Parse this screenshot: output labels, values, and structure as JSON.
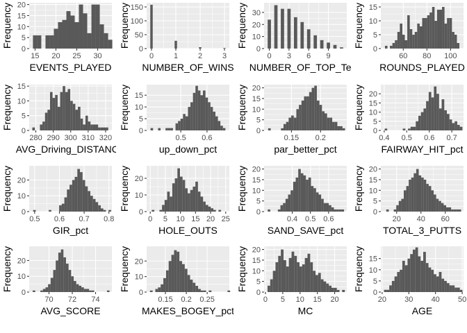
{
  "colors": {
    "panel_background": "#ebebeb",
    "grid": "#ffffff",
    "bar_fill": "#595959",
    "tick_text": "#4d4d4d"
  },
  "chart_data": [
    {
      "type": "bar",
      "xlabel": "EVENTS_PLAYED",
      "ylabel": "Frequency",
      "xlim": [
        13.6,
        33.4
      ],
      "ylim": [
        0,
        20.8
      ],
      "xticks": [
        15,
        20,
        25,
        30
      ],
      "yticks": [
        0,
        5,
        10,
        15,
        20
      ],
      "bins": {
        "start": 14.5,
        "width": 1,
        "counts": [
          6,
          6,
          0,
          6,
          6,
          9,
          12,
          13,
          17,
          15,
          12,
          20,
          16,
          7,
          20,
          20,
          11,
          7,
          4
        ]
      }
    },
    {
      "type": "bar",
      "xlabel": "NUMBER_OF_WINS",
      "ylabel": "Frequency",
      "xlim": [
        -0.2,
        3.2
      ],
      "ylim": [
        0,
        165
      ],
      "xticks": [
        0,
        1,
        2,
        3
      ],
      "yticks": [
        0,
        50,
        100,
        150
      ],
      "bins": {
        "start": -0.05,
        "width": 0.1,
        "counts": [
          158,
          0,
          0,
          0,
          0,
          0,
          0,
          0,
          0,
          0,
          28,
          0,
          0,
          0,
          0,
          0,
          0,
          0,
          0,
          0,
          5,
          0,
          0,
          0,
          0,
          0,
          0,
          0,
          0,
          0,
          2
        ]
      }
    },
    {
      "type": "bar",
      "xlabel": "NUMBER_OF_TOP_Tens",
      "ylabel": "Frequency",
      "xlim": [
        -0.8,
        11.8
      ],
      "ylim": [
        0,
        38
      ],
      "xticks": [
        0,
        3,
        6,
        9
      ],
      "yticks": [
        0,
        10,
        20,
        30
      ],
      "bins": {
        "start": -0.25,
        "width": 0.5,
        "counts": [
          24,
          0,
          36,
          0,
          33,
          0,
          33,
          0,
          26,
          0,
          22,
          0,
          16,
          0,
          11,
          0,
          7,
          0,
          5,
          0,
          3,
          0,
          1
        ]
      }
    },
    {
      "type": "bar",
      "xlabel": "ROUNDS_PLAYED",
      "ylabel": "Frequency",
      "xlim": [
        41,
        111
      ],
      "ylim": [
        0,
        16.5
      ],
      "xticks": [
        60,
        80,
        100
      ],
      "yticks": [
        0,
        5,
        10,
        15
      ],
      "bins": {
        "start": 44.5,
        "width": 2.1,
        "counts": [
          1,
          0,
          1,
          2,
          3,
          6,
          9,
          5,
          3,
          12,
          7,
          5,
          6,
          9,
          8,
          11,
          11,
          12,
          13,
          15,
          10,
          14,
          14,
          15,
          9,
          11,
          11,
          6,
          5,
          2
        ]
      }
    },
    {
      "type": "bar",
      "xlabel": "AVG_Driving_DISTANCE",
      "ylabel": "Frequency",
      "xlim": [
        276.2,
        323.6
      ],
      "ylim": [
        0,
        15.5
      ],
      "xticks": [
        280,
        290,
        300,
        310,
        320
      ],
      "yticks": [
        0,
        5,
        10,
        15
      ],
      "bins": {
        "start": 278,
        "width": 1.45,
        "counts": [
          1,
          0,
          0,
          2,
          3,
          6,
          7,
          13,
          11,
          12,
          8,
          13,
          15,
          13,
          14,
          10,
          9,
          7,
          8,
          4,
          2,
          5,
          3,
          2,
          2,
          2,
          1,
          1,
          1,
          1
        ]
      }
    },
    {
      "type": "bar",
      "xlabel": "up_down_pct",
      "ylabel": "Frequency",
      "xlim": [
        0.37,
        0.685
      ],
      "ylim": [
        0,
        19.5
      ],
      "xticks": [
        0.5,
        0.6
      ],
      "yticks": [
        0,
        5,
        10,
        15
      ],
      "bins": {
        "start": 0.385,
        "width": 0.0095,
        "counts": [
          1,
          0,
          0,
          1,
          0,
          0,
          1,
          1,
          1,
          0,
          3,
          4,
          5,
          7,
          6,
          10,
          12,
          16,
          19,
          17,
          15,
          17,
          14,
          12,
          10,
          8,
          6,
          4,
          2,
          1
        ]
      }
    },
    {
      "type": "bar",
      "xlabel": "par_better_pct",
      "ylabel": "Frequency",
      "xlim": [
        0.103,
        0.245
      ],
      "ylim": [
        0,
        21.5
      ],
      "xticks": [
        0.15,
        0.2
      ],
      "yticks": [
        0,
        5,
        10,
        15,
        20
      ],
      "bins": {
        "start": 0.11,
        "width": 0.0044,
        "counts": [
          1,
          0,
          0,
          0,
          0,
          1,
          3,
          4,
          6,
          7,
          6,
          10,
          12,
          14,
          16,
          16,
          18,
          20,
          21,
          14,
          12,
          9,
          8,
          6,
          6,
          4,
          4,
          2,
          2,
          1
        ]
      }
    },
    {
      "type": "bar",
      "xlabel": "FAIRWAY_HIT_pct",
      "ylabel": "Frequency",
      "xlim": [
        0.385,
        0.752
      ],
      "ylim": [
        0,
        25
      ],
      "xticks": [
        0.4,
        0.5,
        0.6,
        0.7
      ],
      "yticks": [
        0,
        5,
        10,
        15,
        20
      ],
      "bins": {
        "start": 0.402,
        "width": 0.0115,
        "counts": [
          1,
          0,
          0,
          0,
          0,
          0,
          0,
          1,
          0,
          1,
          2,
          2,
          5,
          8,
          10,
          12,
          16,
          21,
          18,
          24,
          20,
          12,
          17,
          11,
          9,
          6,
          4,
          5,
          3,
          2
        ]
      }
    },
    {
      "type": "bar",
      "xlabel": "GIR_pct",
      "ylabel": "Frequency",
      "xlim": [
        0.478,
        0.812
      ],
      "ylim": [
        0,
        29
      ],
      "xticks": [
        0.5,
        0.6,
        0.7,
        0.8
      ],
      "yticks": [
        0,
        10,
        20
      ],
      "bins": {
        "start": 0.494,
        "width": 0.0105,
        "counts": [
          1,
          0,
          0,
          0,
          0,
          0,
          1,
          0,
          0,
          0,
          4,
          5,
          9,
          14,
          17,
          20,
          22,
          27,
          25,
          20,
          16,
          13,
          10,
          8,
          6,
          4,
          2,
          1,
          0,
          1
        ]
      }
    },
    {
      "type": "bar",
      "xlabel": "HOLE_OUTS",
      "ylabel": "Frequency",
      "xlim": [
        -1.2,
        26.2
      ],
      "ylim": [
        0,
        27.5
      ],
      "xticks": [
        0,
        5,
        10,
        15,
        20,
        25
      ],
      "yticks": [
        0,
        10,
        20
      ],
      "bins": {
        "start": 0.5,
        "width": 0.85,
        "counts": [
          1,
          0,
          0,
          1,
          4,
          7,
          12,
          9,
          17,
          20,
          26,
          21,
          19,
          14,
          11,
          13,
          15,
          18,
          12,
          9,
          6,
          4,
          3,
          2,
          1,
          0,
          1
        ]
      }
    },
    {
      "type": "bar",
      "xlabel": "SAND_SAVE_pct",
      "ylabel": "Frequency",
      "xlim": [
        0.245,
        0.7
      ],
      "ylim": [
        0,
        21.5
      ],
      "xticks": [
        0.4,
        0.5,
        0.6
      ],
      "yticks": [
        0,
        5,
        10,
        15,
        20
      ],
      "bins": {
        "start": 0.265,
        "width": 0.014,
        "counts": [
          1,
          0,
          0,
          0,
          1,
          3,
          4,
          6,
          8,
          10,
          14,
          16,
          20,
          18,
          17,
          15,
          16,
          12,
          11,
          9,
          8,
          6,
          4,
          4,
          3,
          2,
          1,
          1,
          1,
          1
        ]
      }
    },
    {
      "type": "bar",
      "xlabel": "TOTAL_3_PUTTS",
      "ylabel": "Frequency",
      "xlim": [
        7,
        75
      ],
      "ylim": [
        0,
        21.5
      ],
      "xticks": [
        20,
        40,
        60
      ],
      "yticks": [
        0,
        5,
        10,
        15,
        20
      ],
      "bins": {
        "start": 11.5,
        "width": 2.05,
        "counts": [
          1,
          0,
          0,
          1,
          3,
          5,
          6,
          10,
          12,
          15,
          16,
          18,
          20,
          17,
          16,
          15,
          13,
          12,
          10,
          8,
          6,
          5,
          4,
          3,
          2,
          2,
          1,
          1,
          1,
          1
        ]
      }
    },
    {
      "type": "bar",
      "xlabel": "AVG_SCORE",
      "ylabel": "Frequency",
      "xlim": [
        68.3,
        75.4
      ],
      "ylim": [
        0,
        29
      ],
      "xticks": [
        70,
        72,
        74
      ],
      "yticks": [
        0,
        10,
        20
      ],
      "bins": {
        "start": 68.6,
        "width": 0.22,
        "counts": [
          1,
          0,
          0,
          1,
          2,
          3,
          5,
          9,
          14,
          20,
          25,
          27,
          22,
          18,
          14,
          10,
          7,
          5,
          4,
          3,
          2,
          2,
          1,
          1,
          0,
          0,
          0,
          0,
          0,
          1
        ]
      }
    },
    {
      "type": "bar",
      "xlabel": "MAKES_BOGEY_pct",
      "ylabel": "Frequency",
      "xlim": [
        0.105,
        0.303
      ],
      "ylim": [
        0,
        29.5
      ],
      "xticks": [
        0.15,
        0.2,
        0.25
      ],
      "yticks": [
        0,
        10,
        20
      ],
      "bins": {
        "start": 0.113,
        "width": 0.0064,
        "counts": [
          1,
          0,
          2,
          3,
          5,
          9,
          14,
          20,
          24,
          27,
          26,
          20,
          18,
          15,
          11,
          8,
          6,
          4,
          2,
          1,
          1,
          0,
          1,
          0,
          0,
          0,
          0,
          0,
          0,
          1
        ]
      }
    },
    {
      "type": "bar",
      "xlabel": "MC",
      "ylabel": "Frequency",
      "xlim": [
        -0.4,
        23.5
      ],
      "ylim": [
        0,
        21.5
      ],
      "xticks": [
        0,
        5,
        10,
        15,
        20
      ],
      "yticks": [
        0,
        5,
        10,
        15,
        20
      ],
      "bins": {
        "start": 0.6,
        "width": 0.77,
        "counts": [
          3,
          6,
          10,
          14,
          17,
          20,
          15,
          12,
          16,
          19,
          17,
          14,
          12,
          13,
          16,
          18,
          14,
          10,
          8,
          9,
          6,
          5,
          4,
          3,
          2,
          2,
          1,
          0,
          1
        ]
      }
    },
    {
      "type": "bar",
      "xlabel": "AGE",
      "ylabel": "Frequency",
      "xlim": [
        19.5,
        50.5
      ],
      "ylim": [
        0,
        20.5
      ],
      "xticks": [
        20,
        30,
        40,
        50
      ],
      "yticks": [
        0,
        5,
        10,
        15
      ],
      "bins": {
        "start": 20.7,
        "width": 0.98,
        "counts": [
          1,
          1,
          3,
          5,
          7,
          9,
          10,
          14,
          12,
          15,
          17,
          19,
          20,
          16,
          14,
          18,
          13,
          11,
          10,
          8,
          7,
          9,
          6,
          5,
          4,
          3,
          3,
          2,
          2,
          1
        ]
      }
    }
  ]
}
